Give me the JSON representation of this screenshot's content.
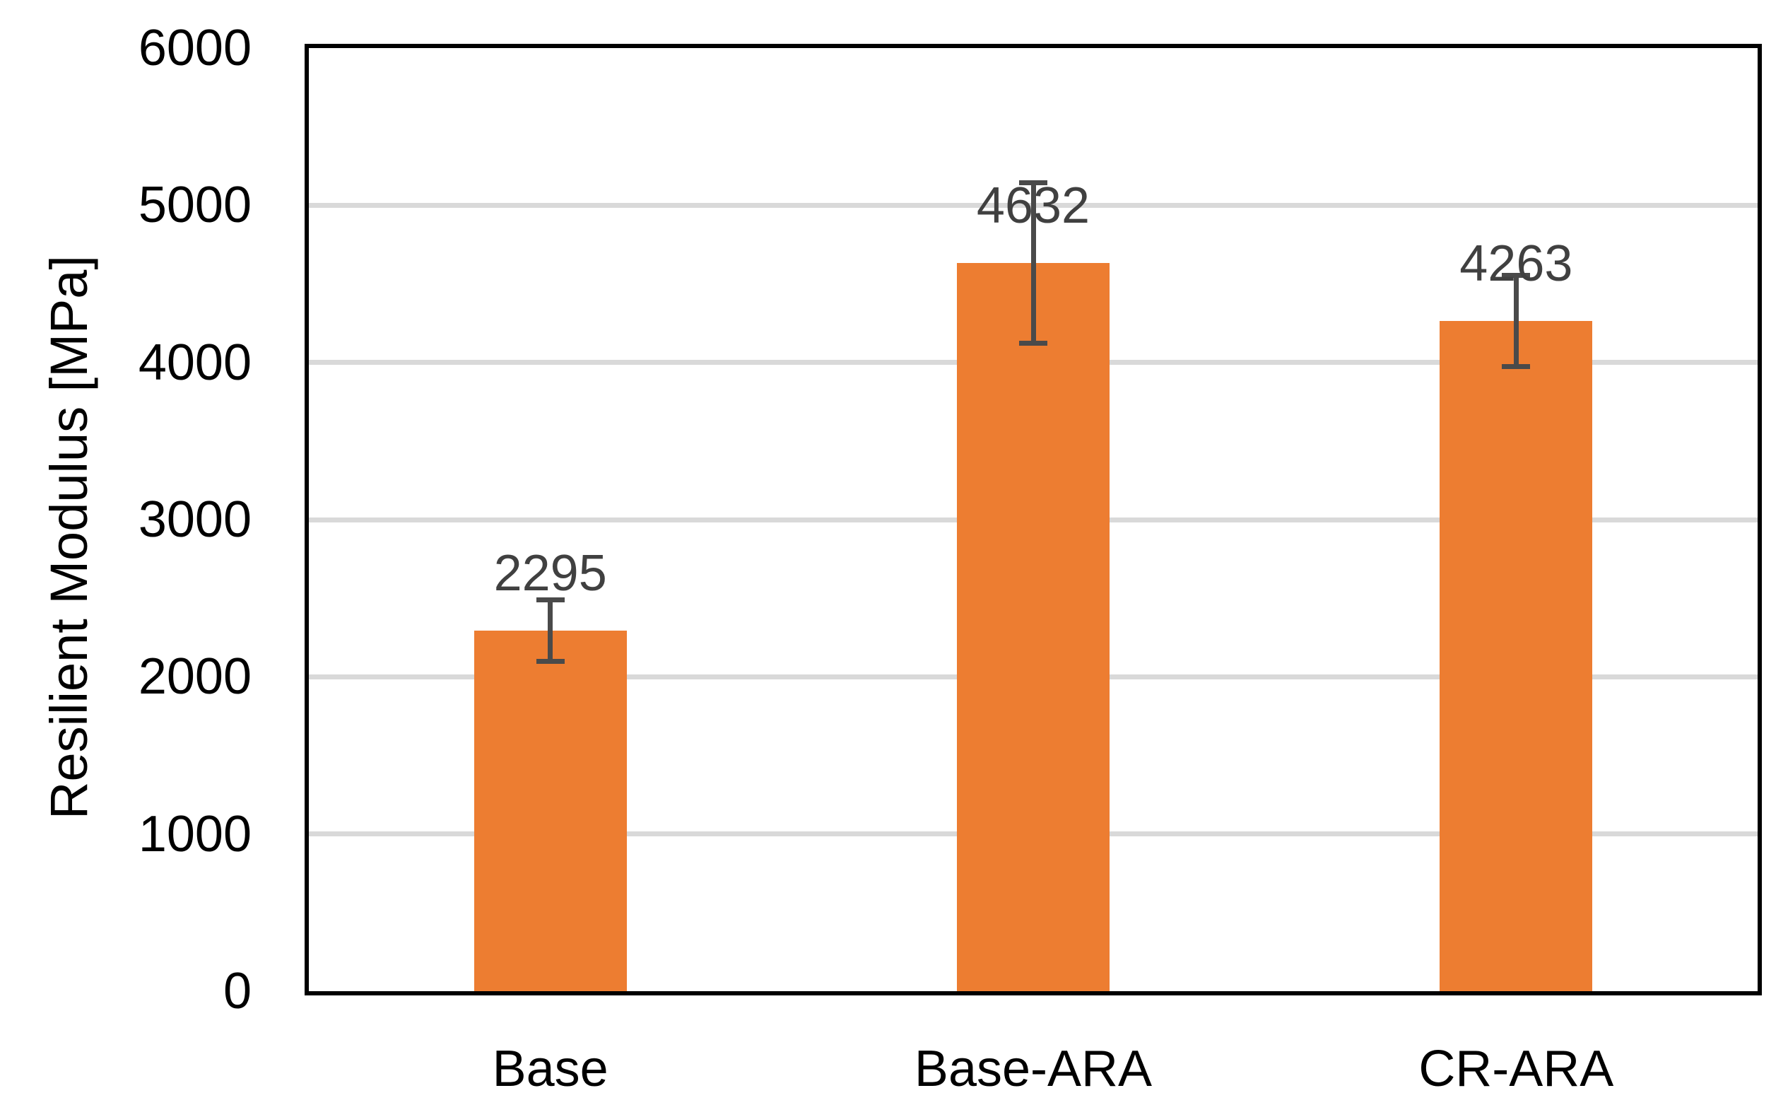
{
  "chart_data": {
    "type": "bar",
    "title": "",
    "categories": [
      "Base",
      "Base-ARA",
      "CR-ARA"
    ],
    "values": [
      2295,
      4632,
      4263
    ],
    "errors": [
      195,
      510,
      290
    ],
    "data_labels": [
      "2295",
      "4632",
      "4263"
    ],
    "xlabel": "",
    "ylabel": "Resilient Modulus [MPa]",
    "ylim": [
      0,
      6000
    ],
    "yticks": [
      0,
      1000,
      2000,
      3000,
      4000,
      5000,
      6000
    ],
    "grid": "horizontal-only",
    "legend": "none",
    "colors": {
      "bar": "#ED7D31",
      "error_bar": "#4A4A4A",
      "gridline": "#D9D9D9",
      "axis_border": "#000000",
      "data_label": "#404040",
      "tick_label": "#000000",
      "background": "#FFFFFF"
    }
  }
}
